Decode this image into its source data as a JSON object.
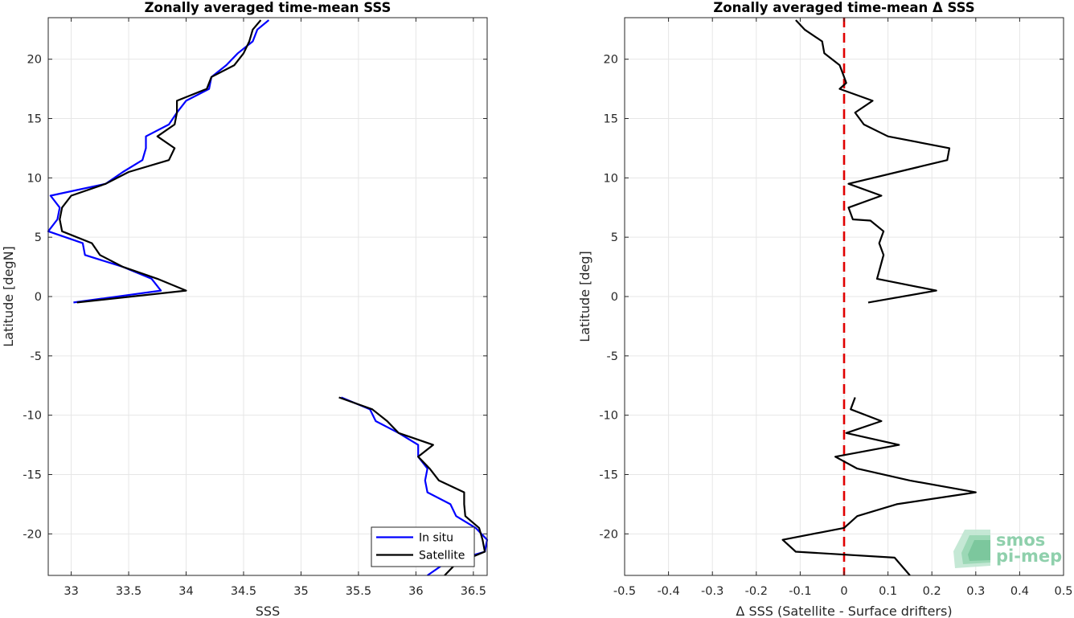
{
  "chart_data": [
    {
      "type": "line",
      "title": "Zonally averaged time-mean SSS",
      "xlabel": "SSS",
      "ylabel": "Latitude [degN]",
      "xlim": [
        32.8,
        36.62
      ],
      "ylim": [
        -23.5,
        23.5
      ],
      "xticks": [
        33,
        33.5,
        34,
        34.5,
        35,
        35.5,
        36,
        36.5
      ],
      "yticks": [
        20,
        15,
        10,
        5,
        0,
        -5,
        -10,
        -15,
        -20
      ],
      "grid": true,
      "legend": "bottom-right",
      "series": [
        {
          "name": "In situ",
          "color": "#0000ff",
          "segments": [
            [
              [
                34.72,
                23.3
              ],
              [
                34.62,
                22.5
              ],
              [
                34.58,
                21.5
              ],
              [
                34.45,
                20.5
              ],
              [
                34.35,
                19.5
              ],
              [
                34.22,
                18.5
              ],
              [
                34.2,
                17.5
              ],
              [
                34.0,
                16.5
              ],
              [
                33.92,
                15.5
              ],
              [
                33.85,
                14.5
              ],
              [
                33.65,
                13.5
              ],
              [
                33.65,
                12.5
              ],
              [
                33.62,
                11.5
              ],
              [
                33.45,
                10.5
              ],
              [
                33.3,
                9.5
              ],
              [
                32.82,
                8.5
              ],
              [
                32.9,
                7.5
              ],
              [
                32.88,
                6.5
              ],
              [
                32.8,
                5.5
              ],
              [
                33.1,
                4.5
              ],
              [
                33.12,
                3.5
              ],
              [
                33.45,
                2.5
              ],
              [
                33.7,
                1.5
              ],
              [
                33.78,
                0.5
              ],
              [
                33.02,
                -0.5
              ]
            ],
            [
              [
                35.35,
                -8.5
              ],
              [
                35.6,
                -9.5
              ],
              [
                35.65,
                -10.5
              ],
              [
                35.85,
                -11.5
              ],
              [
                36.02,
                -12.5
              ],
              [
                36.02,
                -13.5
              ],
              [
                36.1,
                -14.5
              ],
              [
                36.08,
                -15.5
              ],
              [
                36.1,
                -16.5
              ],
              [
                36.3,
                -17.5
              ],
              [
                36.35,
                -18.5
              ],
              [
                36.52,
                -19.5
              ],
              [
                36.62,
                -20.5
              ],
              [
                36.6,
                -21.5
              ],
              [
                36.25,
                -22.5
              ],
              [
                36.1,
                -23.5
              ]
            ]
          ]
        },
        {
          "name": "Satellite",
          "color": "#000000",
          "segments": [
            [
              [
                34.65,
                23.3
              ],
              [
                34.58,
                22.5
              ],
              [
                34.55,
                21.5
              ],
              [
                34.5,
                20.5
              ],
              [
                34.42,
                19.5
              ],
              [
                34.22,
                18.5
              ],
              [
                34.18,
                17.5
              ],
              [
                33.92,
                16.5
              ],
              [
                33.92,
                15.5
              ],
              [
                33.9,
                14.5
              ],
              [
                33.75,
                13.5
              ],
              [
                33.9,
                12.5
              ],
              [
                33.85,
                11.5
              ],
              [
                33.5,
                10.5
              ],
              [
                33.3,
                9.5
              ],
              [
                33.0,
                8.5
              ],
              [
                32.92,
                7.5
              ],
              [
                32.9,
                6.5
              ],
              [
                32.92,
                5.5
              ],
              [
                33.18,
                4.5
              ],
              [
                33.25,
                3.5
              ],
              [
                33.45,
                2.5
              ],
              [
                33.75,
                1.5
              ],
              [
                34.0,
                0.5
              ],
              [
                33.05,
                -0.5
              ]
            ],
            [
              [
                35.33,
                -8.5
              ],
              [
                35.62,
                -9.5
              ],
              [
                35.75,
                -10.5
              ],
              [
                35.85,
                -11.5
              ],
              [
                36.15,
                -12.5
              ],
              [
                36.02,
                -13.5
              ],
              [
                36.12,
                -14.5
              ],
              [
                36.2,
                -15.5
              ],
              [
                36.42,
                -16.5
              ],
              [
                36.42,
                -17.5
              ],
              [
                36.43,
                -18.5
              ],
              [
                36.55,
                -19.5
              ],
              [
                36.58,
                -20.5
              ],
              [
                36.6,
                -21.5
              ],
              [
                36.35,
                -22.5
              ],
              [
                36.25,
                -23.5
              ]
            ]
          ]
        }
      ]
    },
    {
      "type": "line",
      "title": "Zonally averaged time-mean Δ SSS",
      "xlabel": "Δ SSS (Satellite - Surface drifters)",
      "ylabel": "Latitude [deg]",
      "xlim": [
        -0.5,
        0.5
      ],
      "ylim": [
        -23.5,
        23.5
      ],
      "xticks": [
        -0.5,
        -0.4,
        -0.3,
        -0.2,
        -0.1,
        0,
        0.1,
        0.2,
        0.3,
        0.4,
        0.5
      ],
      "yticks": [
        20,
        15,
        10,
        5,
        0,
        -5,
        -10,
        -15,
        -20
      ],
      "grid": true,
      "reference_line": {
        "x": 0,
        "color": "#e00000",
        "style": "dashed"
      },
      "series": [
        {
          "color": "#000000",
          "segments": [
            [
              [
                -0.11,
                23.3
              ],
              [
                -0.09,
                22.5
              ],
              [
                -0.05,
                21.5
              ],
              [
                -0.045,
                20.5
              ],
              [
                -0.01,
                19.5
              ],
              [
                0.0,
                18.5
              ],
              [
                0.005,
                18.0
              ],
              [
                -0.01,
                17.5
              ],
              [
                0.065,
                16.5
              ],
              [
                0.025,
                15.5
              ],
              [
                0.045,
                14.5
              ],
              [
                0.1,
                13.5
              ],
              [
                0.24,
                12.5
              ],
              [
                0.235,
                11.5
              ],
              [
                0.01,
                9.5
              ],
              [
                0.085,
                8.5
              ],
              [
                0.01,
                7.5
              ],
              [
                0.02,
                6.5
              ],
              [
                0.06,
                6.4
              ],
              [
                0.09,
                5.5
              ],
              [
                0.08,
                4.5
              ],
              [
                0.09,
                3.5
              ],
              [
                0.075,
                1.5
              ],
              [
                0.21,
                0.5
              ],
              [
                0.055,
                -0.5
              ]
            ],
            [
              [
                0.025,
                -8.5
              ],
              [
                0.015,
                -9.5
              ],
              [
                0.085,
                -10.5
              ],
              [
                0.005,
                -11.5
              ],
              [
                0.125,
                -12.5
              ],
              [
                -0.02,
                -13.5
              ],
              [
                0.03,
                -14.5
              ],
              [
                0.15,
                -15.5
              ],
              [
                0.3,
                -16.5
              ],
              [
                0.12,
                -17.5
              ],
              [
                0.03,
                -18.5
              ],
              [
                0.0,
                -19.5
              ],
              [
                -0.14,
                -20.5
              ],
              [
                -0.11,
                -21.5
              ],
              [
                0.115,
                -22.0
              ],
              [
                0.15,
                -23.5
              ]
            ]
          ]
        }
      ]
    }
  ],
  "logo": {
    "line1": "smos",
    "line2": "pi-mep"
  }
}
